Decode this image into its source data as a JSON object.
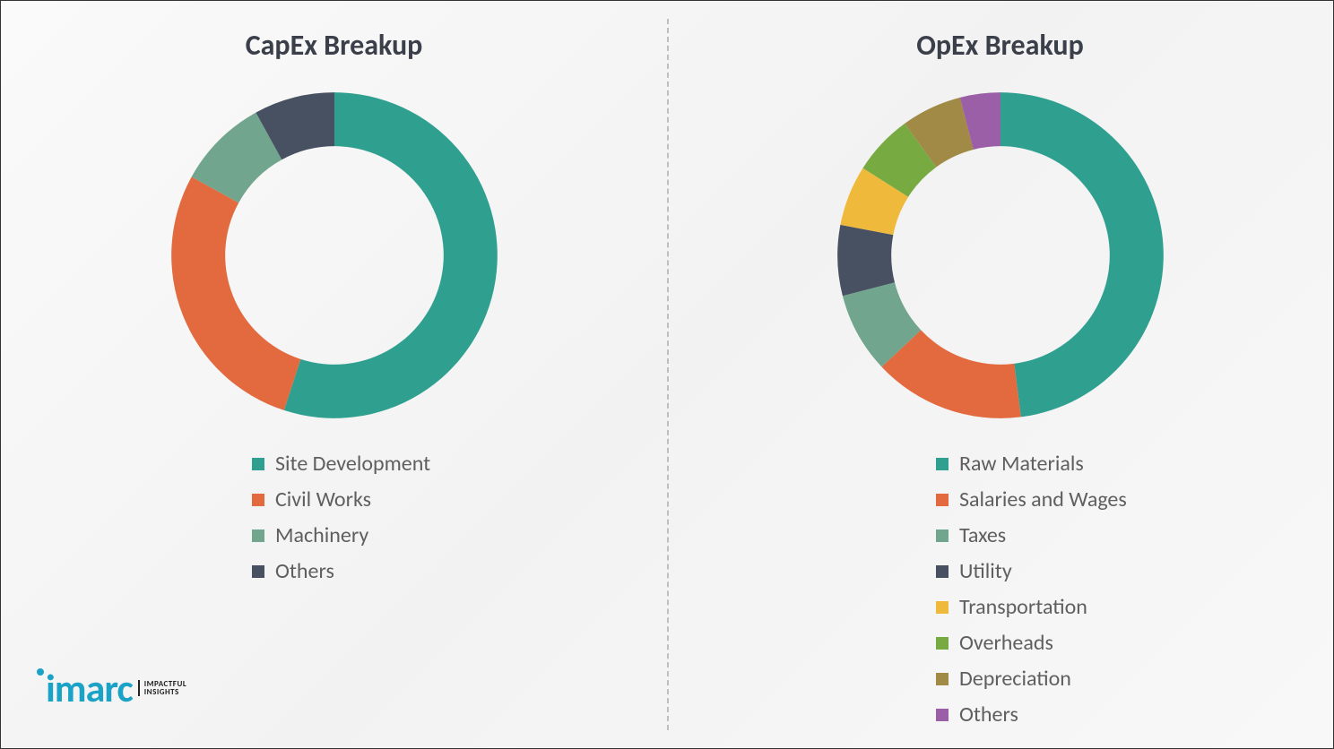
{
  "background_color": "#f8f8f8",
  "divider_color": "#bfbfbf",
  "title_color": "#3a3f4a",
  "legend_text_color": "#5f5f5f",
  "title_fontsize": 32,
  "legend_fontsize": 24,
  "donut": {
    "outer_r": 100,
    "inner_r": 67
  },
  "capex_chart": {
    "title": "CapEx Breakup",
    "type": "donut",
    "start_angle_deg": 0,
    "segments": [
      {
        "label": "Site Development",
        "value": 55,
        "color": "#2fa08f"
      },
      {
        "label": "Civil Works",
        "value": 28,
        "color": "#e26a3e"
      },
      {
        "label": "Machinery",
        "value": 9,
        "color": "#72a58d"
      },
      {
        "label": "Others",
        "value": 8,
        "color": "#475162"
      }
    ]
  },
  "opex_chart": {
    "title": "OpEx Breakup",
    "type": "donut",
    "start_angle_deg": 0,
    "segments": [
      {
        "label": "Raw Materials",
        "value": 48,
        "color": "#2fa08f"
      },
      {
        "label": "Salaries and Wages",
        "value": 15,
        "color": "#e26a3e"
      },
      {
        "label": "Taxes",
        "value": 8,
        "color": "#72a58d"
      },
      {
        "label": "Utility",
        "value": 7,
        "color": "#475162"
      },
      {
        "label": "Transportation",
        "value": 6,
        "color": "#efb93c"
      },
      {
        "label": "Overheads",
        "value": 6,
        "color": "#77ab42"
      },
      {
        "label": "Depreciation",
        "value": 6,
        "color": "#a08a45"
      },
      {
        "label": "Others",
        "value": 4,
        "color": "#9b5fa8"
      }
    ]
  },
  "logo": {
    "brand": "imarc",
    "brand_color": "#1aa3c6",
    "tagline_line1": "IMPACTFUL",
    "tagline_line2": "INSIGHTS"
  }
}
